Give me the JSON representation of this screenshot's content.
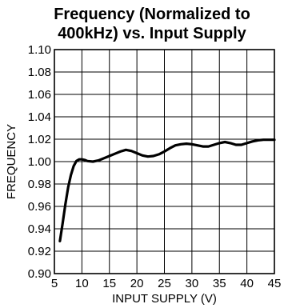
{
  "chart_data": {
    "type": "line",
    "title_line1": "Frequency (Normalized to",
    "title_line2": "400kHz) vs. Input Supply",
    "xlabel": "INPUT SUPPLY (V)",
    "ylabel": "FREQUENCY",
    "xlim": [
      5,
      45
    ],
    "ylim": [
      0.9,
      1.1
    ],
    "x_ticks": [
      5,
      10,
      15,
      20,
      25,
      30,
      35,
      40,
      45
    ],
    "y_ticks": [
      0.9,
      0.92,
      0.94,
      0.96,
      0.98,
      1.0,
      1.02,
      1.04,
      1.06,
      1.08,
      1.1
    ],
    "y_tick_labels": [
      "0.90",
      "0.92",
      "0.94",
      "0.96",
      "0.98",
      "1.00",
      "1.02",
      "1.04",
      "1.06",
      "1.08",
      "1.10"
    ],
    "grid": true,
    "series": [
      {
        "x": [
          6,
          6.5,
          7,
          7.5,
          8,
          8.5,
          9,
          9.5,
          10,
          10.5,
          11,
          12,
          13,
          14,
          15,
          16,
          17,
          18,
          19,
          20,
          21,
          22,
          23,
          24,
          25,
          26,
          27,
          28,
          29,
          30,
          31,
          32,
          33,
          34,
          35,
          36,
          37,
          38,
          39,
          40,
          41,
          42,
          43,
          44,
          45
        ],
        "y": [
          0.929,
          0.945,
          0.962,
          0.977,
          0.988,
          0.996,
          1.0005,
          1.002,
          1.002,
          1.0015,
          1.0005,
          1.0,
          1.001,
          1.003,
          1.005,
          1.007,
          1.009,
          1.0105,
          1.0095,
          1.0075,
          1.0055,
          1.0045,
          1.005,
          1.0065,
          1.009,
          1.012,
          1.0145,
          1.0155,
          1.016,
          1.0155,
          1.0145,
          1.0135,
          1.0135,
          1.015,
          1.0165,
          1.0175,
          1.0165,
          1.015,
          1.015,
          1.0165,
          1.018,
          1.019,
          1.0195,
          1.0195,
          1.0195
        ]
      }
    ]
  },
  "style": {
    "line_color": "#000000",
    "grid_color": "#000000"
  }
}
